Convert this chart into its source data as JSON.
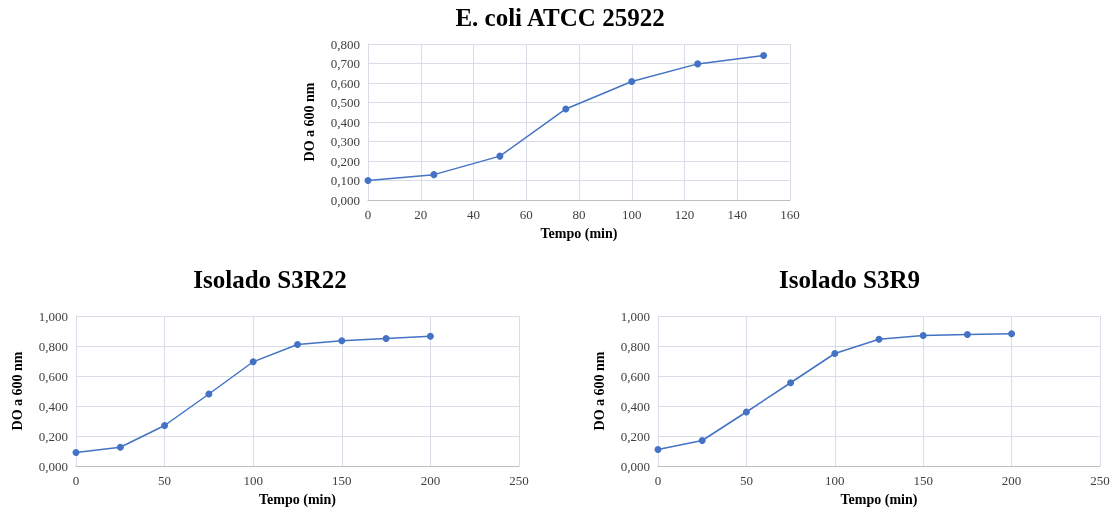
{
  "chart_data": [
    {
      "type": "line",
      "title": "E. coli ATCC 25922",
      "xlabel": "Tempo (min)",
      "ylabel": "DO a 600 nm",
      "x": [
        0,
        25,
        50,
        75,
        100,
        125,
        150
      ],
      "series": [
        {
          "color": "#4472c4",
          "values": [
            0.1,
            0.13,
            0.225,
            0.467,
            0.608,
            0.698,
            0.741
          ]
        }
      ],
      "xlim": [
        0,
        160
      ],
      "xticks": [
        0,
        20,
        40,
        60,
        80,
        100,
        120,
        140,
        160
      ],
      "ylim": [
        0,
        0.8
      ],
      "yticks": [
        {
          "value": 0,
          "label": "0,000"
        },
        {
          "value": 0.1,
          "label": "0,100"
        },
        {
          "value": 0.2,
          "label": "0,200"
        },
        {
          "value": 0.3,
          "label": "0,300"
        },
        {
          "value": 0.4,
          "label": "0,400"
        },
        {
          "value": 0.5,
          "label": "0,500"
        },
        {
          "value": 0.6,
          "label": "0,600"
        },
        {
          "value": 0.7,
          "label": "0,700"
        },
        {
          "value": 0.8,
          "label": "0,800"
        }
      ],
      "grid": true,
      "marker": "circle",
      "line_style": "solid"
    },
    {
      "type": "line",
      "title": "Isolado S3R22",
      "xlabel": "Tempo (min)",
      "ylabel": "DO a 600 nm",
      "x": [
        0,
        25,
        50,
        75,
        100,
        125,
        150,
        175,
        200
      ],
      "series": [
        {
          "color": "#4472c4",
          "values": [
            0.09,
            0.125,
            0.27,
            0.48,
            0.695,
            0.81,
            0.835,
            0.85,
            0.865
          ]
        }
      ],
      "xlim": [
        0,
        250
      ],
      "xticks": [
        0,
        50,
        100,
        150,
        200,
        250
      ],
      "ylim": [
        0,
        1
      ],
      "yticks": [
        {
          "value": 0,
          "label": "0,000"
        },
        {
          "value": 0.2,
          "label": "0,200"
        },
        {
          "value": 0.4,
          "label": "0,400"
        },
        {
          "value": 0.6,
          "label": "0,600"
        },
        {
          "value": 0.8,
          "label": "0,800"
        },
        {
          "value": 1,
          "label": "1,000"
        }
      ],
      "grid": true,
      "marker": "circle",
      "line_style": "solid"
    },
    {
      "type": "line",
      "title": "Isolado S3R9",
      "xlabel": "Tempo (min)",
      "ylabel": "DO a 600 nm",
      "x": [
        0,
        25,
        50,
        75,
        100,
        125,
        150,
        175,
        200
      ],
      "series": [
        {
          "color": "#4472c4",
          "values": [
            0.11,
            0.17,
            0.36,
            0.555,
            0.75,
            0.845,
            0.87,
            0.877,
            0.882
          ]
        }
      ],
      "xlim": [
        0,
        250
      ],
      "xticks": [
        0,
        50,
        100,
        150,
        200,
        250
      ],
      "ylim": [
        0,
        1
      ],
      "yticks": [
        {
          "value": 0,
          "label": "0,000"
        },
        {
          "value": 0.2,
          "label": "0,200"
        },
        {
          "value": 0.4,
          "label": "0,400"
        },
        {
          "value": 0.6,
          "label": "0,600"
        },
        {
          "value": 0.8,
          "label": "0,800"
        },
        {
          "value": 1,
          "label": "1,000"
        }
      ],
      "grid": true,
      "marker": "circle",
      "line_style": "solid"
    }
  ]
}
